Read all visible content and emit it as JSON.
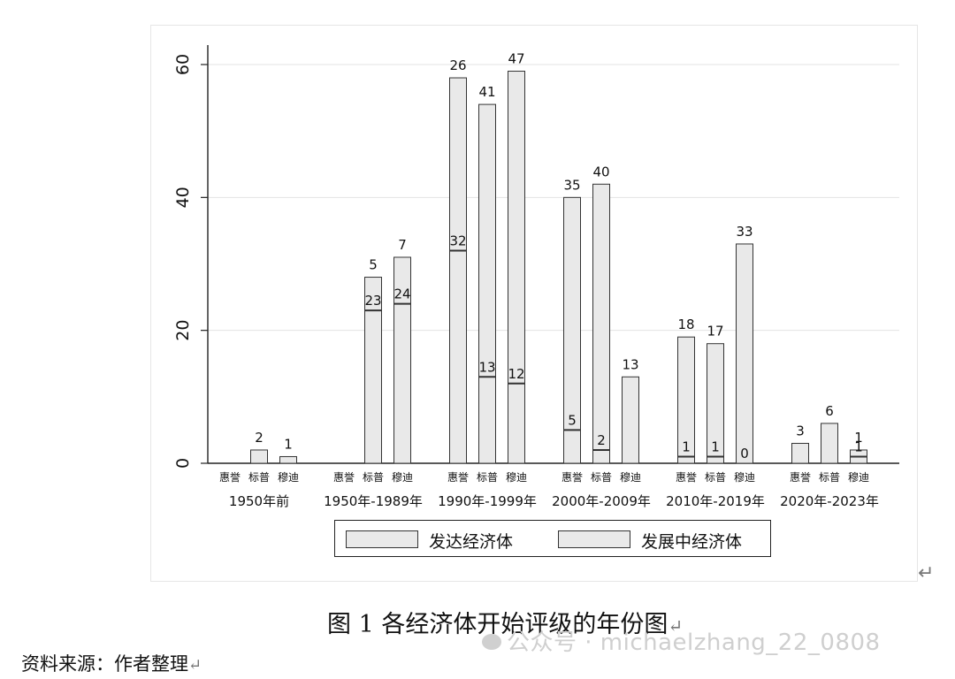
{
  "chart_data": {
    "type": "bar",
    "stacked": true,
    "ylim": [
      0,
      62
    ],
    "yticks": [
      0,
      20,
      40,
      60
    ],
    "grid": true,
    "legend_position": "bottom",
    "groups": [
      {
        "label": "1950年前",
        "bars": [
          {
            "label": "惠誉",
            "developed": 0,
            "developing": 0,
            "top_label": "",
            "mid_label": ""
          },
          {
            "label": "标普",
            "developed": 0,
            "developing": 2,
            "top_label": "2",
            "mid_label": ""
          },
          {
            "label": "穆迪",
            "developed": 0,
            "developing": 1,
            "top_label": "1",
            "mid_label": ""
          }
        ]
      },
      {
        "label": "1950年-1989年",
        "bars": [
          {
            "label": "惠誉",
            "developed": 0,
            "developing": 0,
            "top_label": "",
            "mid_label": ""
          },
          {
            "label": "标普",
            "developed": 23,
            "developing": 5,
            "top_label": "5",
            "mid_label": "23"
          },
          {
            "label": "穆迪",
            "developed": 24,
            "developing": 7,
            "top_label": "7",
            "mid_label": "24"
          }
        ]
      },
      {
        "label": "1990年-1999年",
        "bars": [
          {
            "label": "惠誉",
            "developed": 32,
            "developing": 26,
            "top_label": "26",
            "mid_label": "32"
          },
          {
            "label": "标普",
            "developed": 13,
            "developing": 41,
            "top_label": "41",
            "mid_label": "13"
          },
          {
            "label": "穆迪",
            "developed": 12,
            "developing": 47,
            "top_label": "47",
            "mid_label": "12"
          }
        ]
      },
      {
        "label": "2000年-2009年",
        "bars": [
          {
            "label": "惠誉",
            "developed": 5,
            "developing": 35,
            "top_label": "35",
            "mid_label": "5"
          },
          {
            "label": "标普",
            "developed": 2,
            "developing": 40,
            "top_label": "40",
            "mid_label": "2"
          },
          {
            "label": "穆迪",
            "developed": 0,
            "developing": 13,
            "top_label": "13",
            "mid_label": ""
          }
        ]
      },
      {
        "label": "2010年-2019年",
        "bars": [
          {
            "label": "惠誉",
            "developed": 1,
            "developing": 18,
            "top_label": "18",
            "mid_label": "1"
          },
          {
            "label": "标普",
            "developed": 1,
            "developing": 17,
            "top_label": "17",
            "mid_label": "1"
          },
          {
            "label": "穆迪",
            "developed": 0,
            "developing": 33,
            "top_label": "33",
            "mid_label": "0"
          }
        ]
      },
      {
        "label": "2020年-2023年",
        "bars": [
          {
            "label": "惠誉",
            "developed": 0,
            "developing": 3,
            "top_label": "3",
            "mid_label": ""
          },
          {
            "label": "标普",
            "developed": 0,
            "developing": 6,
            "top_label": "6",
            "mid_label": ""
          },
          {
            "label": "穆迪",
            "developed": 1,
            "developing": 1,
            "top_label": "1",
            "mid_label": "1"
          }
        ]
      }
    ],
    "series": [
      {
        "name": "发达经济体",
        "color": "#e9e9e9"
      },
      {
        "name": "发展中经济体",
        "color": "#e9e9e9"
      }
    ]
  },
  "caption": "图 1    各经济体开始评级的年份图",
  "source": "资料来源：作者整理",
  "watermark": "公众号 · michaelzhang_22_0808",
  "colors": {
    "bar_fill": "#e9e9e9",
    "bar_stroke": "#333333",
    "segment_line": "#333333"
  }
}
